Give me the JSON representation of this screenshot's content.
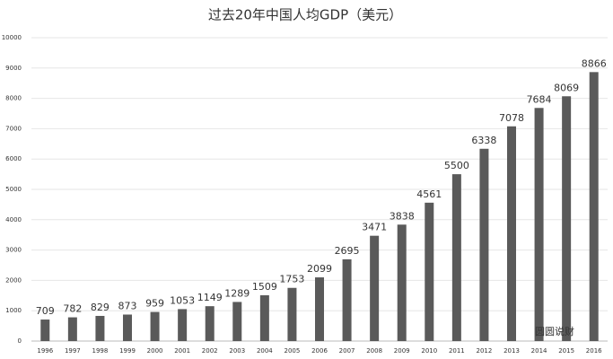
{
  "chart_data": {
    "type": "bar",
    "title": "过去20年中国人均GDP（美元）",
    "categories": [
      "1996",
      "1997",
      "1998",
      "1999",
      "2000",
      "2001",
      "2002",
      "2003",
      "2004",
      "2005",
      "2006",
      "2007",
      "2008",
      "2009",
      "2010",
      "2011",
      "2012",
      "2013",
      "2014",
      "2015",
      "2016"
    ],
    "values": [
      709,
      782,
      829,
      873,
      959,
      1053,
      1149,
      1289,
      1509,
      1753,
      2099,
      2695,
      3471,
      3838,
      4561,
      5500,
      6338,
      7078,
      7684,
      8069,
      8866
    ],
    "color": "#5a5a5a",
    "ylim": [
      0,
      10000
    ],
    "yticks": [
      0,
      1000,
      2000,
      3000,
      4000,
      5000,
      6000,
      7000,
      8000,
      9000,
      10000
    ],
    "grid": true,
    "watermark": "圆圆说财"
  }
}
